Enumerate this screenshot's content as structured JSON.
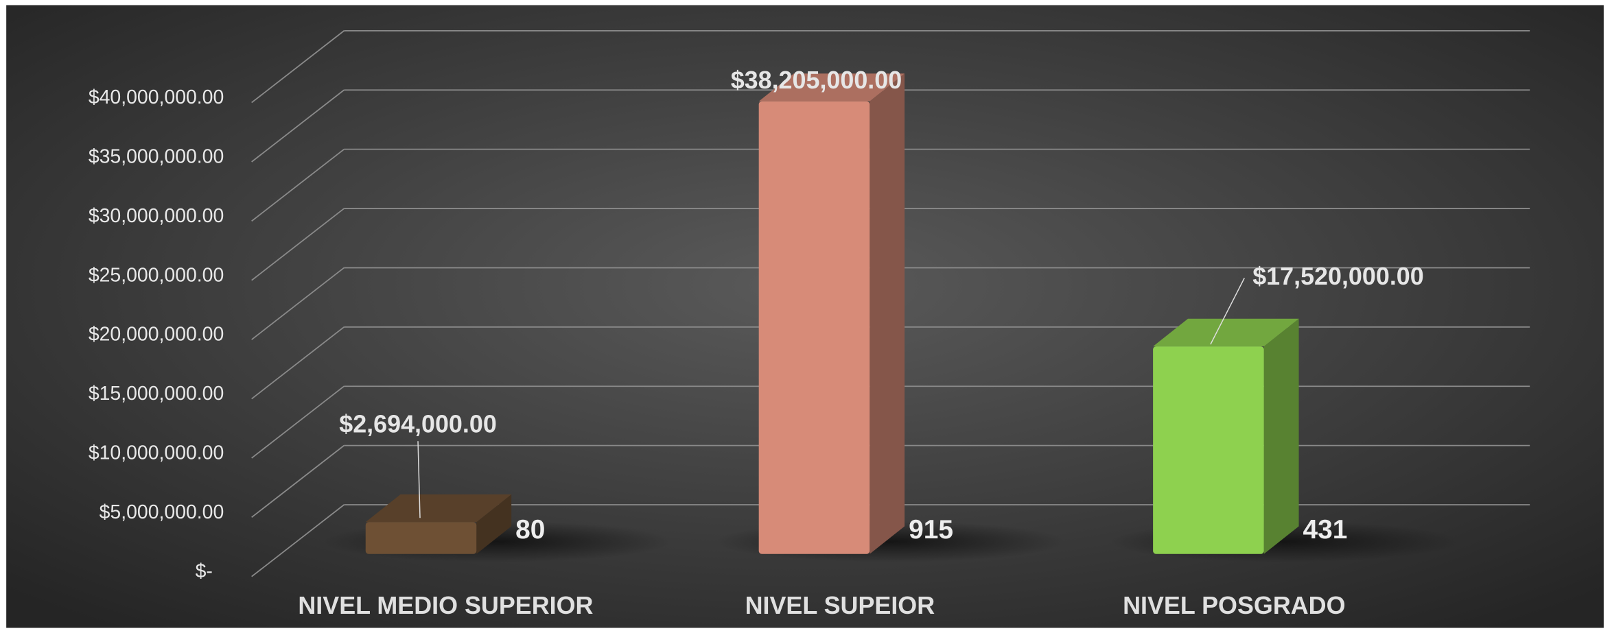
{
  "chart_data": {
    "type": "bar3d",
    "categories": [
      "NIVEL MEDIO SUPERIOR",
      "NIVEL SUPEIOR",
      "NIVEL POSGRADO"
    ],
    "values": [
      2694000,
      38205000,
      17520000
    ],
    "value_labels": [
      "$2,694,000.00",
      "$38,205,000.00",
      "$17,520,000.00"
    ],
    "counts": [
      80,
      915,
      431
    ],
    "colors": [
      "#6e5034",
      "#d78b78",
      "#8ed14f"
    ],
    "ylim": [
      0,
      40000000
    ],
    "yticks": [
      {
        "value": 0,
        "label": "$-"
      },
      {
        "value": 5000000,
        "label": "$5,000,000.00"
      },
      {
        "value": 10000000,
        "label": "$10,000,000.00"
      },
      {
        "value": 15000000,
        "label": "$15,000,000.00"
      },
      {
        "value": 20000000,
        "label": "$20,000,000.00"
      },
      {
        "value": 25000000,
        "label": "$25,000,000.00"
      },
      {
        "value": 30000000,
        "label": "$30,000,000.00"
      },
      {
        "value": 35000000,
        "label": "$35,000,000.00"
      },
      {
        "value": 40000000,
        "label": "$40,000,000.00"
      }
    ],
    "grid": true
  }
}
